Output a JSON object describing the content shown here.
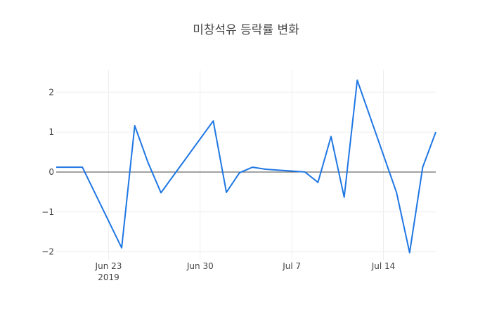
{
  "chart_data": {
    "type": "line",
    "title": "미창석유 등락률 변화",
    "xlabel": "",
    "ylabel": "",
    "x": [
      "2019-06-19",
      "2019-06-20",
      "2019-06-21",
      "2019-06-24",
      "2019-06-25",
      "2019-06-26",
      "2019-06-27",
      "2019-07-01",
      "2019-07-02",
      "2019-07-03",
      "2019-07-04",
      "2019-07-05",
      "2019-07-08",
      "2019-07-09",
      "2019-07-10",
      "2019-07-11",
      "2019-07-12",
      "2019-07-15",
      "2019-07-16",
      "2019-07-17",
      "2019-07-18"
    ],
    "series": [
      {
        "name": "",
        "values": [
          0.12,
          0.12,
          0.12,
          -1.9,
          1.16,
          0.25,
          -0.52,
          1.28,
          -0.51,
          -0.02,
          0.12,
          0.07,
          0.0,
          -0.26,
          0.89,
          -0.63,
          2.3,
          -0.51,
          -2.02,
          0.12,
          1.0
        ]
      }
    ],
    "xlim": [
      "2019-06-19",
      "2019-07-18"
    ],
    "ylim": [
      -2.2,
      2.55
    ],
    "y_ticks": [
      2,
      1,
      0,
      -1,
      -2
    ],
    "y_tick_labels": [
      "2",
      "1",
      "0",
      "−1",
      "−2"
    ],
    "x_ticks": [
      "2019-06-23",
      "2019-06-30",
      "2019-07-07",
      "2019-07-14"
    ],
    "x_tick_labels": [
      "Jun 23",
      "Jun 30",
      "Jul 7",
      "Jul 14"
    ],
    "x_tick_sublabel": "2019",
    "grid": true,
    "zero_line": true,
    "line_color": "#1f77e4",
    "grid_color": "#eeeeee",
    "zero_line_color": "#444444"
  }
}
